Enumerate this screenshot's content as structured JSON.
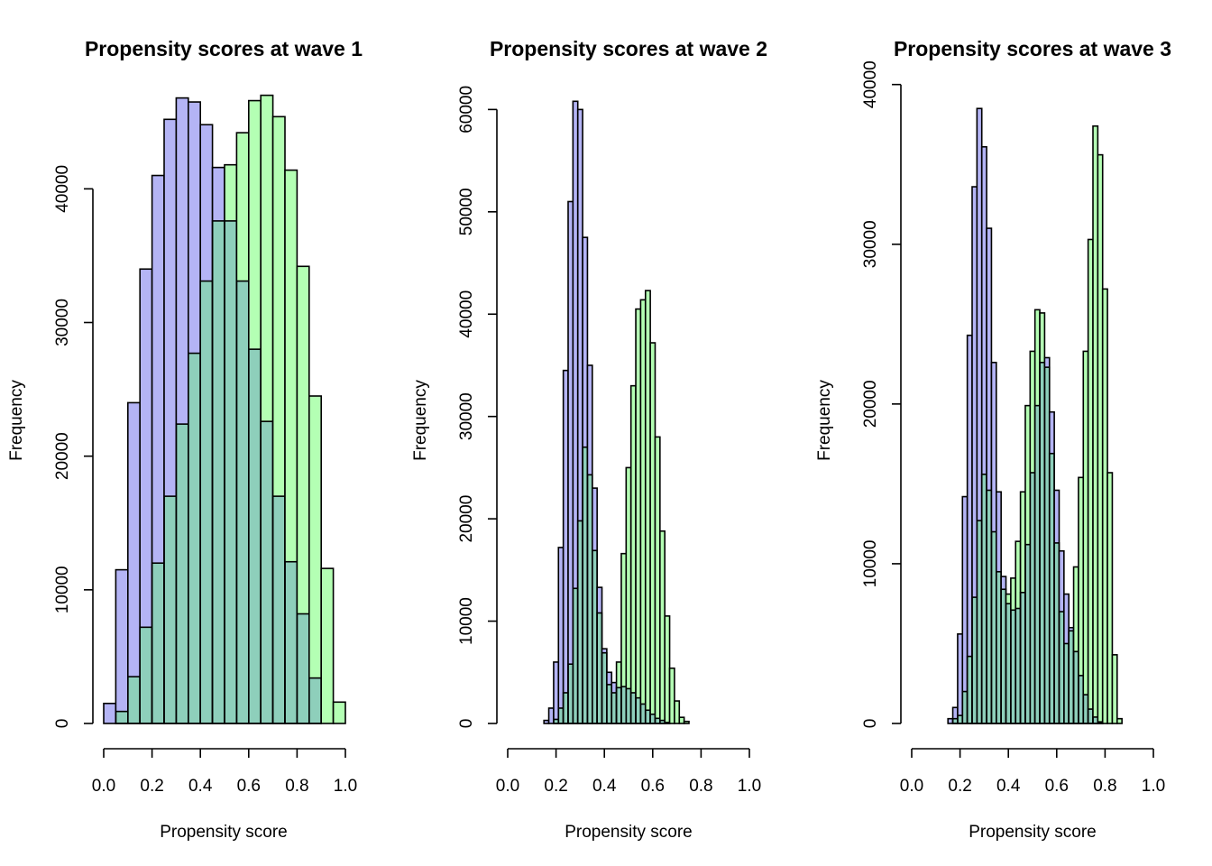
{
  "chart_data": [
    {
      "type": "bar",
      "title": "Propensity scores at wave 1",
      "xlabel": "Propensity score",
      "ylabel": "Frequency",
      "xlim": [
        0,
        1
      ],
      "ylim": [
        0,
        49000
      ],
      "x_ticks": [
        "0.0",
        "0.2",
        "0.4",
        "0.6",
        "0.8",
        "1.0"
      ],
      "y_ticks": [
        "0",
        "10000",
        "20000",
        "30000",
        "40000"
      ],
      "bin_start": 0.0,
      "bin_width": 0.05,
      "series": [
        {
          "color": "#b4b4f5",
          "values": [
            1500,
            11500,
            24000,
            34000,
            41000,
            45200,
            46800,
            46500,
            44800,
            41600,
            37600,
            33100,
            28000,
            22600,
            17000,
            12100,
            8200,
            3400,
            0,
            0
          ]
        },
        {
          "color": "#b4ffb4",
          "values": [
            0,
            900,
            3500,
            7200,
            12000,
            17000,
            22400,
            27700,
            33100,
            37600,
            41800,
            44200,
            46600,
            47000,
            45400,
            41400,
            34200,
            24500,
            11600,
            1600
          ]
        }
      ]
    },
    {
      "type": "bar",
      "title": "Propensity scores at wave 2",
      "xlabel": "Propensity score",
      "ylabel": "Frequency",
      "xlim": [
        0,
        1
      ],
      "ylim": [
        0,
        64000
      ],
      "x_ticks": [
        "0.0",
        "0.2",
        "0.4",
        "0.6",
        "0.8",
        "1.0"
      ],
      "y_ticks": [
        "0",
        "10000",
        "20000",
        "30000",
        "40000",
        "50000",
        "60000"
      ],
      "bin_start": 0.13,
      "bin_width": 0.02,
      "series": [
        {
          "color": "#b4b4f5",
          "values": [
            0,
            300,
            1500,
            6000,
            17200,
            34500,
            51000,
            60800,
            60000,
            47500,
            35000,
            23000,
            13300,
            7300,
            5000,
            4000,
            3500,
            3600,
            3400,
            3000,
            2500,
            1900,
            1300,
            900,
            500,
            300,
            100,
            0,
            0,
            0,
            0,
            0
          ]
        },
        {
          "color": "#b4ffb4",
          "values": [
            0,
            0,
            0,
            400,
            1500,
            3000,
            5800,
            13200,
            19800,
            27000,
            24300,
            16900,
            10800,
            6900,
            3800,
            3000,
            6000,
            16600,
            25000,
            33000,
            40500,
            41400,
            42300,
            37200,
            28000,
            18800,
            10500,
            5400,
            2200,
            600,
            200,
            0
          ]
        }
      ]
    },
    {
      "type": "bar",
      "title": "Propensity scores at wave 3",
      "xlabel": "Propensity score",
      "ylabel": "Frequency",
      "xlim": [
        0,
        1
      ],
      "ylim": [
        0,
        41000
      ],
      "x_ticks": [
        "0.0",
        "0.2",
        "0.4",
        "0.6",
        "0.8",
        "1.0"
      ],
      "y_ticks": [
        "0",
        "10000",
        "20000",
        "30000",
        "40000"
      ],
      "bin_start": 0.13,
      "bin_width": 0.02,
      "series": [
        {
          "color": "#b4b4f5",
          "values": [
            0,
            300,
            1000,
            5600,
            14200,
            24300,
            33600,
            38500,
            36100,
            31000,
            22600,
            14500,
            9200,
            7500,
            7100,
            7200,
            8200,
            11200,
            15700,
            19900,
            22600,
            22900,
            19500,
            14600,
            10800,
            8100,
            6000,
            4500,
            3000,
            1800,
            900,
            400,
            100,
            0,
            0,
            0,
            0
          ]
        },
        {
          "color": "#b4ffb4",
          "values": [
            0,
            0,
            300,
            500,
            2000,
            4200,
            7900,
            12700,
            15600,
            14600,
            12000,
            9500,
            8400,
            8100,
            9100,
            11400,
            14500,
            19900,
            23300,
            25900,
            25700,
            22300,
            16900,
            11300,
            7000,
            5000,
            5800,
            9800,
            15400,
            23300,
            30300,
            37400,
            35600,
            27200,
            15700,
            4300,
            300
          ]
        }
      ]
    }
  ]
}
